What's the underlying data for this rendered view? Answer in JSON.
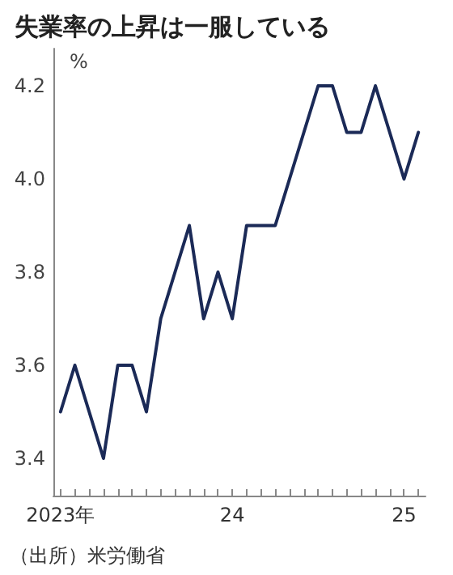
{
  "chart_data": {
    "type": "line",
    "title": "失業率の上昇は一服している",
    "ylabel": "%",
    "categories": [
      "2023年",
      null,
      null,
      null,
      null,
      null,
      null,
      null,
      null,
      null,
      null,
      null,
      "24",
      null,
      null,
      null,
      null,
      null,
      null,
      null,
      null,
      null,
      null,
      null,
      "25",
      null
    ],
    "series": [
      {
        "color": "#1b2a57",
        "values": [
          3.5,
          3.6,
          3.5,
          3.4,
          3.6,
          3.6,
          3.5,
          3.7,
          3.8,
          3.9,
          3.7,
          3.8,
          3.7,
          3.9,
          3.9,
          3.9,
          4.0,
          4.1,
          4.2,
          4.2,
          4.1,
          4.1,
          4.2,
          4.1,
          4.0,
          4.1
        ]
      }
    ],
    "ylim": [
      3.32,
      4.28
    ],
    "yticks": [
      3.4,
      3.6,
      3.8,
      {
        "value": 4,
        "label": "4.0"
      },
      4.2
    ],
    "grid": false,
    "marker": "none",
    "line_style": "solid",
    "annotations": [
      "（出所）米労働省"
    ]
  }
}
